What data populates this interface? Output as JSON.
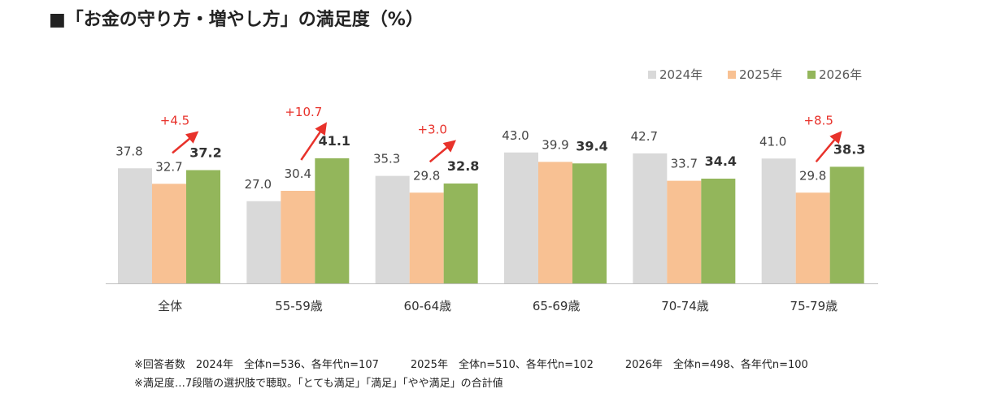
{
  "title": "■「お金の守り方・増やし方」の満足度（%）",
  "chart_data": {
    "type": "bar",
    "categories": [
      "全体",
      "55-59歳",
      "60-64歳",
      "65-69歳",
      "70-74歳",
      "75-79歳"
    ],
    "series": [
      {
        "name": "2024年",
        "color": "#d9d9d9",
        "labels": [
          "37.8",
          "27.0",
          "35.3",
          "43.0",
          "42.7",
          "41.0"
        ],
        "values": [
          37.8,
          27.0,
          35.3,
          43.0,
          42.7,
          41.0
        ]
      },
      {
        "name": "2025年",
        "color": "#f8c193",
        "labels": [
          "32.7",
          "30.4",
          "29.8",
          "39.9",
          "33.7",
          "29.8"
        ],
        "values": [
          32.7,
          30.4,
          29.8,
          39.9,
          33.7,
          29.8
        ]
      },
      {
        "name": "2026年",
        "color": "#93b65b",
        "labels": [
          "37.2",
          "41.1",
          "32.8",
          "39.4",
          "34.4",
          "38.3"
        ],
        "values": [
          37.2,
          41.1,
          32.8,
          39.4,
          34.4,
          38.3
        ]
      }
    ],
    "ylim": [
      0,
      50
    ],
    "grid": false,
    "legend": "top-right",
    "annotations": [
      {
        "category": "全体",
        "text": "+4.5"
      },
      {
        "category": "55-59歳",
        "text": "+10.7"
      },
      {
        "category": "60-64歳",
        "text": "+3.0"
      },
      {
        "category": "75-79歳",
        "text": "+8.5"
      }
    ],
    "annotation_color": "#e8322b"
  },
  "notes": [
    "※回答者数　2024年　全体n=536、各年代n=107　　　2025年　全体n=510、各年代n=102　　　2026年　全体n=498、各年代n=100",
    "※満足度…7段階の選択肢で聴取。「とても満足」「満足」「やや満足」の合計値"
  ]
}
